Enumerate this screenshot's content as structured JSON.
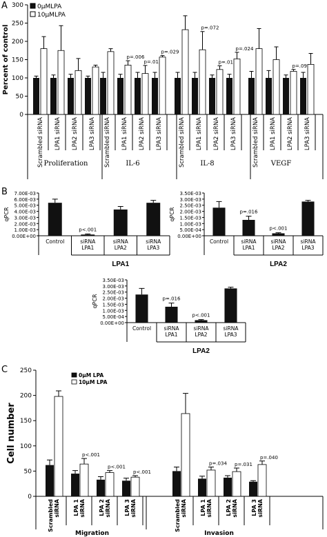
{
  "panel_letters": [
    "A",
    "B",
    "C"
  ],
  "chart_data": [
    {
      "id": "A",
      "type": "bar",
      "ylabel": "Percent of control",
      "ylim": [
        0,
        300
      ],
      "yticks": [
        0,
        50,
        100,
        150,
        200,
        250,
        300
      ],
      "legend": [
        "0μMLPA",
        "10μMLPA"
      ],
      "legend_position": "top-left",
      "groups": [
        {
          "label": "Proliferation",
          "categories": [
            "Scrambled siRNA",
            "LPA1 siRNA",
            "LPA2 siRNA",
            "LPA3 siRNA"
          ],
          "values0": [
            100,
            100,
            100,
            100
          ],
          "err0": [
            5,
            8,
            10,
            5
          ],
          "values10": [
            180,
            175,
            120,
            130
          ],
          "err10": [
            33,
            68,
            33,
            5
          ],
          "pvalues": [
            "",
            "",
            "",
            ""
          ]
        },
        {
          "label": "IL-6",
          "categories": [
            "Scrambled siRNA",
            "LPA1 siRNA",
            "LPA2 siRNA",
            "LPA3 siRNA"
          ],
          "values0": [
            100,
            100,
            100,
            100
          ],
          "err0": [
            15,
            10,
            15,
            15
          ],
          "values10": [
            172,
            135,
            112,
            157
          ],
          "err10": [
            8,
            12,
            22,
            4
          ],
          "pvalues": [
            "",
            "p=.006",
            "p=.012",
            "p=.029"
          ]
        },
        {
          "label": "IL-8",
          "categories": [
            "Scrambled siRNA",
            "LPA1 siRNA",
            "LPA2 siRNA",
            "LPA3 siRNA"
          ],
          "values0": [
            100,
            100,
            100,
            100
          ],
          "err0": [
            15,
            15,
            8,
            10
          ],
          "values10": [
            232,
            177,
            123,
            152
          ],
          "err10": [
            38,
            50,
            10,
            18
          ],
          "pvalues": [
            "",
            "p=.072",
            "p=.013",
            "p=.024"
          ]
        },
        {
          "label": "VEGF",
          "categories": [
            "Scrambled siRNA",
            "LPA1 siRNA",
            "LPA2 siRNA",
            "LPA3 siRNA"
          ],
          "values0": [
            100,
            100,
            100,
            100
          ],
          "err0": [
            18,
            20,
            8,
            15
          ],
          "values10": [
            180,
            150,
            118,
            137
          ],
          "err10": [
            55,
            35,
            5,
            30
          ],
          "pvalues": [
            "",
            "",
            "p=.091",
            ""
          ]
        }
      ]
    },
    {
      "id": "B1",
      "type": "bar",
      "ylabel": "qPCR",
      "yticks": [
        "0.00E+00",
        "1.00E-03",
        "2.00E-03",
        "3.00E-03",
        "4.00E-03",
        "5.00E-03",
        "6.00E-03",
        "7.00E-03"
      ],
      "ylim": [
        0,
        0.007
      ],
      "categories": [
        [
          "Control"
        ],
        [
          "siRNA",
          "LPA1"
        ],
        [
          "siRNA",
          "LPA2"
        ],
        [
          "siRNA",
          "LPA3"
        ]
      ],
      "values": [
        0.0054,
        0.0002,
        0.0043,
        0.0054
      ],
      "errors": [
        0.0006,
        0.0001,
        0.0005,
        0.0004
      ],
      "annotations": [
        "",
        "p<.001",
        "",
        ""
      ],
      "title": "LPA1"
    },
    {
      "id": "B2",
      "type": "bar",
      "ylabel": "qPCR",
      "yticks": [
        "0.00E+00",
        "5.00E-04",
        "1.00E-03",
        "1.50E-03",
        "2.00E-03",
        "2.50E-03",
        "3.00E-03",
        "3.50E-03"
      ],
      "ylim": [
        0,
        0.0035
      ],
      "categories": [
        [
          "Control"
        ],
        [
          "siRNA",
          "LPA1"
        ],
        [
          "siRNA",
          "LPA2"
        ],
        [
          "siRNA",
          "LPA3"
        ]
      ],
      "values": [
        0.0023,
        0.0013,
        0.0002,
        0.0028
      ],
      "errors": [
        0.0005,
        0.0003,
        5e-05,
        0.0001
      ],
      "annotations": [
        "",
        "p=.016",
        "p<.001",
        ""
      ],
      "title": "LPA2"
    },
    {
      "id": "B3",
      "type": "bar",
      "ylabel": "qPCR",
      "yticks": [
        "0.00E+00",
        "5.00E-04",
        "1.00E-03",
        "1.50E-03",
        "2.00E-03",
        "2.50E-03",
        "3.00E-03",
        "3.50E-03"
      ],
      "ylim": [
        0,
        0.0035
      ],
      "categories": [
        [
          "Control"
        ],
        [
          "siRNA",
          "LPA1"
        ],
        [
          "siRNA",
          "LPA2"
        ],
        [
          "siRNA",
          "LPA3"
        ]
      ],
      "values": [
        0.0023,
        0.0013,
        0.0002,
        0.0028
      ],
      "errors": [
        0.0005,
        0.0003,
        5e-05,
        0.0001
      ],
      "annotations": [
        "",
        "p=.016",
        "p<.001",
        ""
      ],
      "title": "LPA2"
    },
    {
      "id": "C",
      "type": "bar",
      "ylabel": "Cell number",
      "ylim": [
        0,
        250
      ],
      "yticks": [
        0,
        50,
        100,
        150,
        200,
        250
      ],
      "legend": [
        "0μM LPA",
        "10μM LPA"
      ],
      "legend_position": "top-left",
      "groups": [
        {
          "label": "Migration",
          "categories": [
            [
              "Scrambled",
              "siRNA"
            ],
            [
              "LPA 1",
              "siRNA"
            ],
            [
              "LPA 2",
              "siRNA"
            ],
            [
              "LPA 3",
              "siRNA"
            ]
          ],
          "values0": [
            62,
            45,
            33,
            31
          ],
          "err0": [
            10,
            6,
            6,
            5
          ],
          "values10": [
            198,
            64,
            47,
            38
          ],
          "err10": [
            11,
            11,
            4,
            3
          ],
          "pvalues": [
            "",
            "p<.001",
            "p<.001",
            "p<.001"
          ]
        },
        {
          "label": "Invasion",
          "categories": [
            [
              "Scrambled",
              "siRNA"
            ],
            [
              "LPA 1",
              "siRNA"
            ],
            [
              "LPA 2",
              "siRNA"
            ],
            [
              "LPA 3",
              "siRNA"
            ]
          ],
          "values0": [
            50,
            35,
            37,
            29
          ],
          "err0": [
            8,
            5,
            4,
            2
          ],
          "values10": [
            164,
            52,
            49,
            63
          ],
          "err10": [
            40,
            6,
            7,
            7
          ],
          "pvalues": [
            "",
            "p=.034",
            "p=.031",
            "p=.040"
          ]
        }
      ]
    }
  ]
}
